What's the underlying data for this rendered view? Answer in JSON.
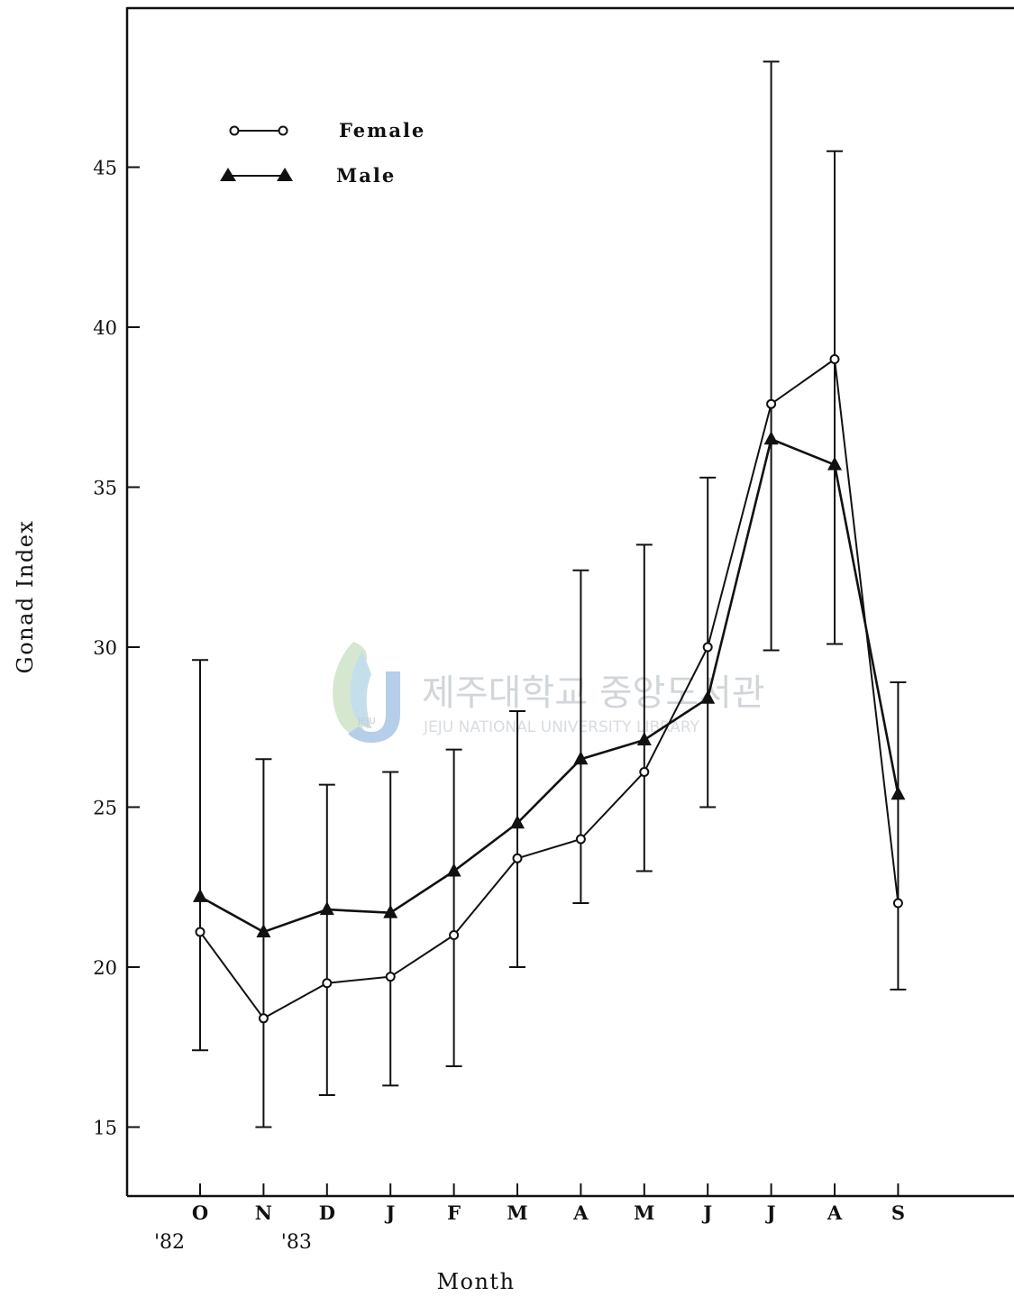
{
  "chart_data": {
    "type": "line",
    "title": "",
    "xlabel": "Month",
    "ylabel": "Gonad Index",
    "ylim": [
      12,
      49
    ],
    "yticks": [
      15,
      20,
      25,
      30,
      35,
      40,
      45
    ],
    "categories": [
      "O",
      "N",
      "D",
      "J",
      "F",
      "M",
      "A",
      "M",
      "J",
      "J",
      "A",
      "S"
    ],
    "year_labels": [
      {
        "label": "'82",
        "category_index": 0
      },
      {
        "label": "'83",
        "category_index": 2
      }
    ],
    "series": [
      {
        "name": "Female",
        "marker": "open-circle",
        "values": [
          21.1,
          18.4,
          19.5,
          19.7,
          21.0,
          23.4,
          24.0,
          26.1,
          30.0,
          37.6,
          39.0,
          22.0
        ],
        "error_low": [
          17.4,
          15.0,
          16.0,
          16.3,
          16.9,
          20.0,
          22.0,
          23.0,
          25.0,
          29.9,
          30.1,
          19.3
        ],
        "error_high": [
          29.6,
          26.5,
          25.7,
          26.1,
          26.8,
          28.0,
          32.4,
          33.2,
          35.3,
          48.3,
          45.5,
          28.9
        ]
      },
      {
        "name": "Male",
        "marker": "filled-triangle",
        "values": [
          22.2,
          21.1,
          21.8,
          21.7,
          23.0,
          24.5,
          26.5,
          27.1,
          28.4,
          36.5,
          35.7,
          25.4
        ]
      }
    ],
    "legend_position": "top-left",
    "grid": false
  },
  "watermark": {
    "korean": "제주대학교 중앙도서관",
    "english": "JEJU NATIONAL UNIVERSITY LIBRARY",
    "logo_text": "JEJU"
  }
}
